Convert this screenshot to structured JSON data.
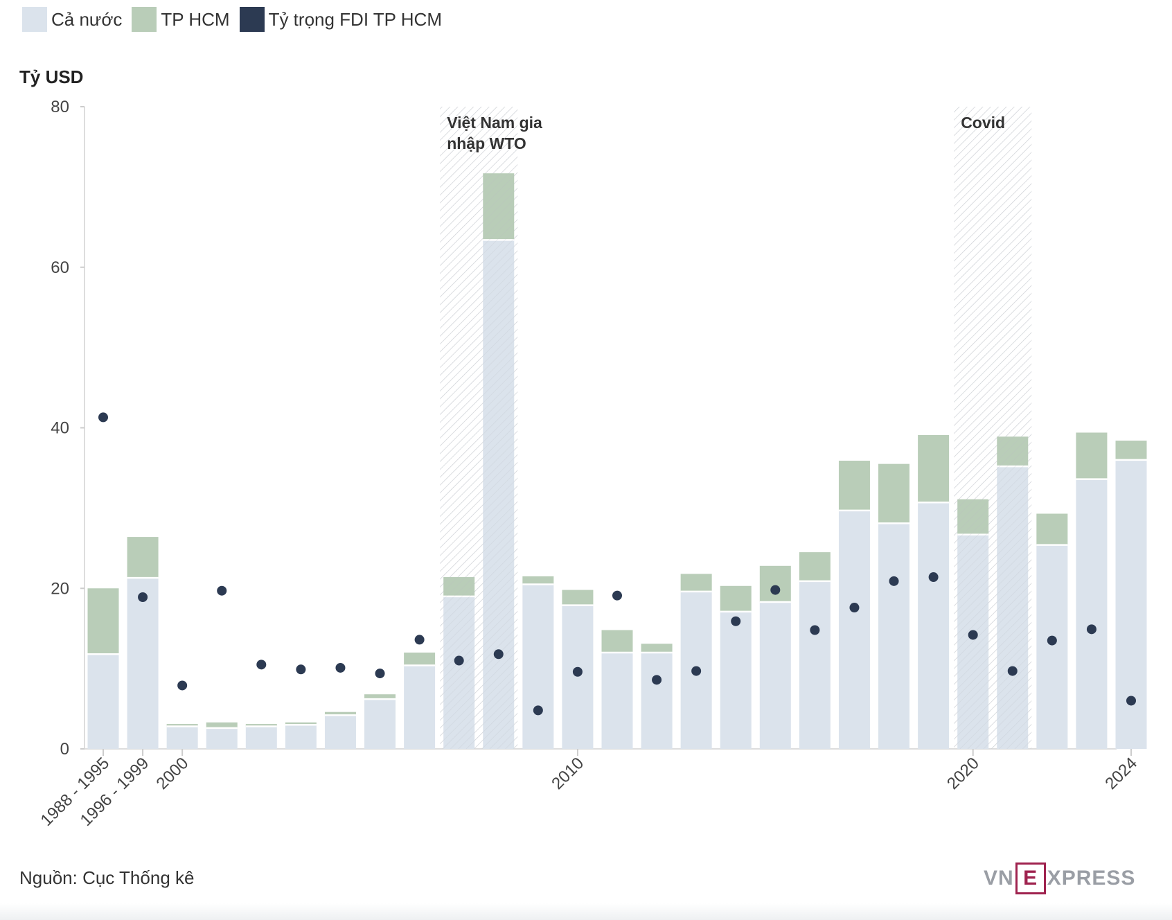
{
  "legend": [
    {
      "label": "Cả nước",
      "color": "#dbe3ec"
    },
    {
      "label": "TP HCM",
      "color": "#b9cdb8"
    },
    {
      "label": "Tỷ trọng FDI TP HCM",
      "color": "#2c3a52"
    }
  ],
  "source": "Nguồn: Cục Thống kê",
  "logo": {
    "pre": "VN",
    "box": "E",
    "post": "XPRESS"
  },
  "chart_data": {
    "type": "bar",
    "ylabel": "Tỷ USD",
    "ylim": [
      0,
      80
    ],
    "yticks": [
      0,
      20,
      40,
      60,
      80
    ],
    "categories": [
      "1988 - 1995",
      "1996 - 1999",
      "2000",
      "2001",
      "2002",
      "2003",
      "2004",
      "2005",
      "2006",
      "2007",
      "2008",
      "2009",
      "2010",
      "2011",
      "2012",
      "2013",
      "2014",
      "2015",
      "2016",
      "2017",
      "2018",
      "2019",
      "2020",
      "2021",
      "2022",
      "2023",
      "2024"
    ],
    "x_tick_labels": {
      "0": "1988 - 1995",
      "1": "1996 - 1999",
      "2": "2000",
      "12": "2010",
      "22": "2020",
      "26": "2024"
    },
    "series": [
      {
        "name": "Cả nước",
        "values": [
          11.8,
          21.3,
          2.8,
          2.6,
          2.8,
          3.0,
          4.2,
          6.2,
          10.4,
          19.0,
          63.4,
          20.5,
          17.9,
          12.0,
          12.0,
          19.6,
          17.1,
          18.3,
          20.9,
          29.7,
          28.1,
          30.7,
          26.7,
          35.2,
          25.4,
          33.6,
          36.0
        ]
      },
      {
        "name": "TP HCM",
        "values": [
          8.2,
          5.1,
          0.3,
          0.7,
          0.3,
          0.3,
          0.4,
          0.6,
          1.6,
          2.4,
          8.3,
          1.0,
          1.9,
          2.8,
          1.1,
          2.2,
          3.2,
          4.5,
          3.6,
          6.2,
          7.4,
          8.4,
          4.4,
          3.7,
          3.9,
          5.8,
          2.4
        ]
      },
      {
        "name": "Tỷ trọng FDI TP HCM",
        "values": [
          41.3,
          18.9,
          7.9,
          19.7,
          10.5,
          9.9,
          10.1,
          9.4,
          13.6,
          11.0,
          11.8,
          4.8,
          9.6,
          19.1,
          8.6,
          9.7,
          15.9,
          19.8,
          14.8,
          17.6,
          20.9,
          21.4,
          14.2,
          9.7,
          13.5,
          14.9,
          6.0
        ]
      }
    ],
    "highlights": [
      {
        "label": "Việt Nam gia nhập WTO",
        "lines": [
          "Việt Nam gia",
          "nhập WTO"
        ],
        "from": "2007",
        "to": "2008"
      },
      {
        "label": "Covid",
        "lines": [
          "Covid"
        ],
        "from": "2020",
        "to": "2021"
      }
    ]
  }
}
